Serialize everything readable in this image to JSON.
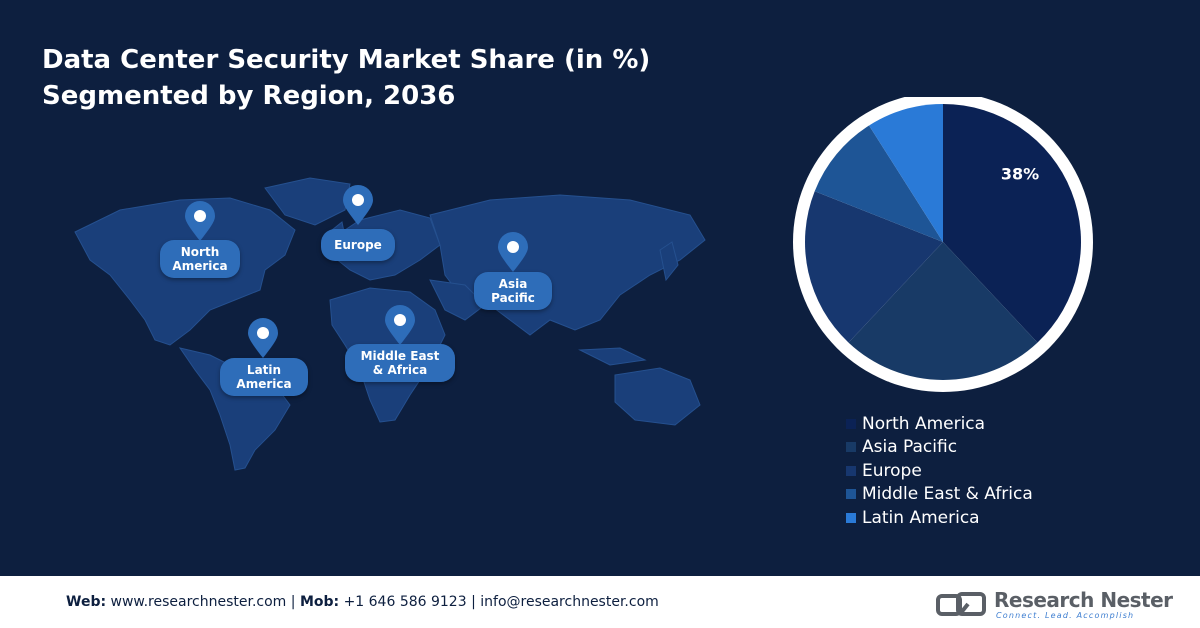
{
  "title": {
    "line1": "Data Center Security Market Share (in %)",
    "line2": "Segmented by Region, 2036"
  },
  "map": {
    "regions": [
      {
        "label_line1": "North",
        "label_line2": "America"
      },
      {
        "label_line1": "Europe",
        "label_line2": ""
      },
      {
        "label_line1": "Asia",
        "label_line2": "Pacific"
      },
      {
        "label_line1": "Latin",
        "label_line2": "America"
      },
      {
        "label_line1": "Middle East",
        "label_line2": "& Africa"
      }
    ]
  },
  "chart_data": {
    "type": "pie",
    "title": "Data Center Security Market Share (in %) Segmented by Region, 2036",
    "slices": [
      {
        "label": "North America",
        "value": 38,
        "color": "#0b2255"
      },
      {
        "label": "Asia Pacific",
        "value": 24,
        "color": "#183a66"
      },
      {
        "label": "Europe",
        "value": 19,
        "color": "#17376f"
      },
      {
        "label": "Middle East & Africa",
        "value": 10,
        "color": "#1e5596"
      },
      {
        "label": "Latin America",
        "value": 9,
        "color": "#2a7ad7"
      }
    ],
    "data_labels": [
      "38%"
    ],
    "legend_position": "bottom-right"
  },
  "legend": {
    "items": [
      {
        "label": "North America",
        "color": "#0b2255"
      },
      {
        "label": "Asia Pacific",
        "color": "#183a66"
      },
      {
        "label": "Europe",
        "color": "#17376f"
      },
      {
        "label": "Middle East & Africa",
        "color": "#1e5596"
      },
      {
        "label": "Latin America",
        "color": "#2a7ad7"
      }
    ]
  },
  "footer": {
    "web_label": "Web:",
    "web_value": "www.researchnester.com",
    "sep1": "|",
    "mob_label": "Mob:",
    "mob_value": "+1 646 586 9123",
    "sep2": "|",
    "email": "info@researchnester.com"
  },
  "logo": {
    "name": "Research Nester",
    "tagline": "Connect. Lead. Accomplish"
  },
  "colors": {
    "background": "#0d1f3f",
    "map_land": "#1a3f7a",
    "pin": "#2e6db9"
  }
}
